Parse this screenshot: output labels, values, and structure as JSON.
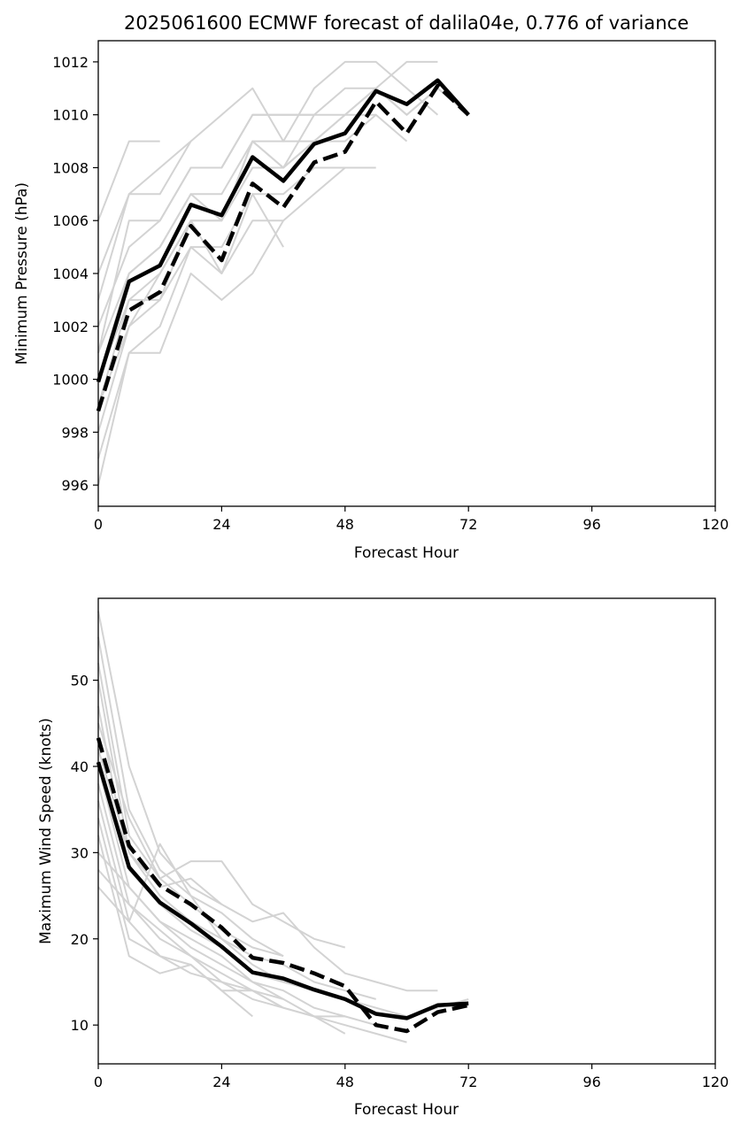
{
  "chart_data": [
    {
      "type": "line",
      "title": "2025061600 ECMWF forecast of dalila04e, 0.776 of variance",
      "xlabel": "Forecast Hour",
      "ylabel": "Minimum Pressure (hPa)",
      "xlim": [
        0,
        120
      ],
      "ylim": [
        995.2,
        1012.8
      ],
      "xticks": [
        0,
        24,
        48,
        72,
        96,
        120
      ],
      "yticks": [
        996,
        998,
        1000,
        1002,
        1004,
        1006,
        1008,
        1010,
        1012
      ],
      "grid": false,
      "legend": "none",
      "ensemble_color": "#d3d3d3",
      "highlight_color": "#000000",
      "ensemble_members": [
        {
          "x": [
            0,
            6,
            12
          ],
          "y": [
            1006,
            1009,
            1009
          ]
        },
        {
          "x": [
            0,
            6,
            12,
            18
          ],
          "y": [
            1004,
            1007,
            1008,
            1009
          ]
        },
        {
          "x": [
            0,
            6,
            12,
            18,
            24,
            30,
            36,
            42,
            48,
            54,
            60,
            66
          ],
          "y": [
            1003,
            1007,
            1007,
            1009,
            1010,
            1011,
            1009,
            1011,
            1012,
            1012,
            1011,
            1010
          ]
        },
        {
          "x": [
            0,
            6,
            12,
            18,
            24,
            30,
            36,
            42,
            48,
            54,
            60,
            66
          ],
          "y": [
            1002,
            1005,
            1006,
            1008,
            1008,
            1010,
            1010,
            1010,
            1011,
            1011,
            1012,
            1012
          ]
        },
        {
          "x": [
            0,
            6,
            12,
            18,
            24,
            30,
            36,
            42,
            48,
            54,
            60,
            66
          ],
          "y": [
            1001,
            1004,
            1005,
            1007,
            1006,
            1009,
            1008,
            1010,
            1010,
            1011,
            1010,
            1011
          ]
        },
        {
          "x": [
            0,
            6,
            12,
            18,
            24,
            30,
            36,
            42,
            48,
            54,
            60,
            66,
            72
          ],
          "y": [
            1000,
            1004,
            1005,
            1007,
            1007,
            1009,
            1009,
            1009,
            1010,
            1011,
            1010,
            1011,
            1010
          ]
        },
        {
          "x": [
            0,
            6,
            12,
            18,
            24,
            30,
            36,
            42,
            48,
            54,
            60
          ],
          "y": [
            999,
            1003,
            1004,
            1006,
            1006,
            1008,
            1008,
            1009,
            1009,
            1010,
            1009
          ]
        },
        {
          "x": [
            0,
            6,
            12,
            18,
            24,
            30,
            36,
            42,
            48
          ],
          "y": [
            998,
            1002,
            1003,
            1005,
            1005,
            1007,
            1007,
            1008,
            1008
          ]
        },
        {
          "x": [
            0,
            6,
            12,
            18,
            24,
            30,
            36,
            42,
            48,
            54
          ],
          "y": [
            997,
            1001,
            1002,
            1005,
            1004,
            1006,
            1006,
            1007,
            1008,
            1008
          ]
        },
        {
          "x": [
            0,
            6,
            12,
            18,
            24,
            30,
            36
          ],
          "y": [
            996,
            1001,
            1001,
            1004,
            1003,
            1004,
            1006
          ]
        },
        {
          "x": [
            0,
            6,
            12,
            18,
            24,
            30,
            36
          ],
          "y": [
            1000,
            1003,
            1003,
            1006,
            1004,
            1007,
            1005
          ]
        },
        {
          "x": [
            0,
            6,
            12,
            18,
            24,
            30,
            36,
            42
          ],
          "y": [
            1001,
            1006,
            1006,
            1008,
            1008,
            1010,
            1010,
            1010
          ]
        },
        {
          "x": [
            0,
            6,
            12,
            18,
            24,
            30,
            36,
            42,
            48,
            54
          ],
          "y": [
            999,
            1002,
            1004,
            1006,
            1006,
            1009,
            1008,
            1009,
            1010,
            1010
          ]
        }
      ],
      "series": [
        {
          "style": "solid",
          "x": [
            0,
            6,
            12,
            18,
            24,
            30,
            36,
            42,
            48,
            54,
            60,
            66,
            72
          ],
          "y": [
            999.9,
            1003.7,
            1004.3,
            1006.6,
            1006.2,
            1008.4,
            1007.5,
            1008.9,
            1009.3,
            1010.9,
            1010.4,
            1011.3,
            1010.0
          ]
        },
        {
          "style": "dashed",
          "x": [
            0,
            6,
            12,
            18,
            24,
            30,
            36,
            42,
            48,
            54,
            60,
            66,
            72
          ],
          "y": [
            998.8,
            1002.6,
            1003.3,
            1005.8,
            1004.5,
            1007.4,
            1006.5,
            1008.2,
            1008.6,
            1010.5,
            1009.3,
            1011.1,
            1010.0
          ]
        }
      ]
    },
    {
      "type": "line",
      "title": "",
      "xlabel": "Forecast Hour",
      "ylabel": "Maximum Wind Speed (knots)",
      "xlim": [
        0,
        120
      ],
      "ylim": [
        5.5,
        59.5
      ],
      "xticks": [
        0,
        24,
        48,
        72,
        96,
        120
      ],
      "yticks": [
        10,
        20,
        30,
        40,
        50
      ],
      "grid": false,
      "legend": "none",
      "ensemble_color": "#d3d3d3",
      "highlight_color": "#000000",
      "ensemble_members": [
        {
          "x": [
            0,
            6,
            12,
            18,
            24
          ],
          "y": [
            58,
            40,
            30,
            26,
            24
          ]
        },
        {
          "x": [
            0,
            6,
            12,
            18,
            24,
            30,
            36
          ],
          "y": [
            55,
            35,
            28,
            25,
            23,
            20,
            18
          ]
        },
        {
          "x": [
            0,
            6,
            12,
            18,
            24,
            30,
            36,
            42,
            48
          ],
          "y": [
            52,
            32,
            27,
            29,
            29,
            24,
            22,
            20,
            19
          ]
        },
        {
          "x": [
            0,
            6,
            12,
            18,
            24,
            30,
            36,
            42,
            48,
            54,
            60,
            66
          ],
          "y": [
            50,
            30,
            26,
            27,
            24,
            22,
            23,
            19,
            16,
            15,
            14,
            14
          ]
        },
        {
          "x": [
            0,
            6,
            12,
            18,
            24,
            30,
            36,
            42,
            48,
            54,
            60,
            66,
            72
          ],
          "y": [
            47,
            28,
            24,
            21,
            19,
            16,
            15,
            14,
            13,
            12,
            11,
            12,
            13
          ]
        },
        {
          "x": [
            0,
            6,
            12,
            18,
            24,
            30,
            36
          ],
          "y": [
            45,
            34,
            27,
            24,
            21,
            19,
            18
          ]
        },
        {
          "x": [
            0,
            6,
            12,
            18,
            24,
            30,
            36,
            42,
            48,
            54
          ],
          "y": [
            42,
            30,
            25,
            22,
            20,
            18,
            17,
            15,
            14,
            13
          ]
        },
        {
          "x": [
            0,
            6,
            12,
            18,
            24,
            30,
            36,
            42,
            48
          ],
          "y": [
            40,
            26,
            22,
            20,
            18,
            15,
            14,
            12,
            11
          ]
        },
        {
          "x": [
            0,
            6,
            12,
            18,
            24,
            30,
            36,
            42,
            48
          ],
          "y": [
            38,
            24,
            20,
            18,
            15,
            14,
            13,
            11,
            9
          ]
        },
        {
          "x": [
            0,
            6,
            12,
            18,
            24,
            30,
            36
          ],
          "y": [
            36,
            22,
            18,
            17,
            14,
            14,
            12
          ]
        },
        {
          "x": [
            0,
            6,
            12,
            18,
            24,
            30,
            36,
            42,
            48,
            54,
            60
          ],
          "y": [
            34,
            20,
            18,
            16,
            15,
            13,
            12,
            11,
            10,
            9,
            8
          ]
        },
        {
          "x": [
            0,
            6,
            12,
            18,
            24,
            30
          ],
          "y": [
            32,
            18,
            16,
            17,
            14,
            11
          ]
        },
        {
          "x": [
            0,
            6,
            12,
            18,
            24,
            30,
            36
          ],
          "y": [
            30,
            26,
            22,
            19,
            17,
            15,
            13
          ]
        },
        {
          "x": [
            0,
            6,
            12,
            18,
            24,
            30,
            36,
            42,
            48,
            54
          ],
          "y": [
            28,
            24,
            21,
            18,
            16,
            14,
            12,
            11,
            11,
            10
          ]
        },
        {
          "x": [
            0,
            6,
            12,
            18,
            24,
            30,
            36
          ],
          "y": [
            26,
            22,
            31,
            25,
            20,
            17,
            15
          ]
        }
      ],
      "series": [
        {
          "style": "solid",
          "x": [
            0,
            6,
            12,
            18,
            24,
            30,
            36,
            42,
            48,
            54,
            60,
            66,
            72
          ],
          "y": [
            40.5,
            28.3,
            24.2,
            21.8,
            19.1,
            16.1,
            15.4,
            14.1,
            13.0,
            11.3,
            10.8,
            12.3,
            12.5
          ]
        },
        {
          "style": "dashed",
          "x": [
            0,
            6,
            12,
            18,
            24,
            30,
            36,
            42,
            48,
            54,
            60,
            66,
            72
          ],
          "y": [
            43.3,
            30.8,
            26.2,
            24.0,
            21.3,
            17.8,
            17.2,
            16.0,
            14.5,
            10.0,
            9.3,
            11.5,
            12.3
          ]
        }
      ]
    }
  ]
}
